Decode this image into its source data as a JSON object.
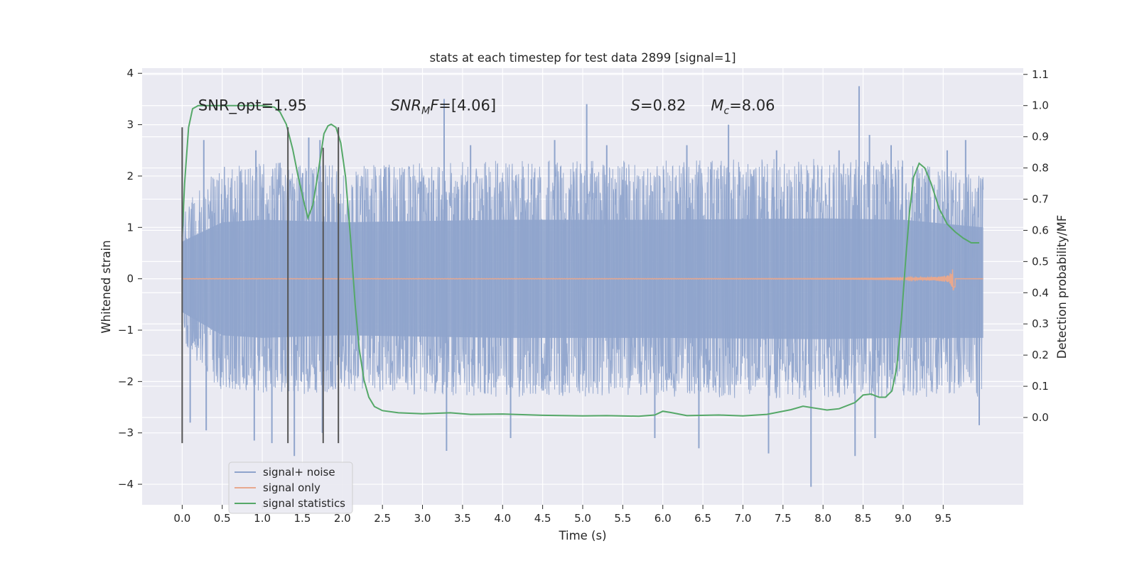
{
  "chart_data": {
    "type": "line",
    "title": "stats at each timestep for test data 2899 [signal=1]",
    "xlabel": "Time (s)",
    "ylabel": "Whitened strain",
    "y2label": "Detection probability/MF",
    "xlim": [
      -0.5,
      10.5
    ],
    "ylim": [
      -4.4,
      4.1
    ],
    "y2lim": [
      -0.28,
      1.12
    ],
    "x_ticks": [
      "0.0",
      "0.5",
      "1.0",
      "1.5",
      "2.0",
      "2.5",
      "3.0",
      "3.5",
      "4.0",
      "4.5",
      "5.0",
      "5.5",
      "6.0",
      "6.5",
      "7.0",
      "7.5",
      "8.0",
      "8.5",
      "9.0",
      "9.5"
    ],
    "y_ticks": [
      "−4",
      "−3",
      "−2",
      "−1",
      "0",
      "1",
      "2",
      "3",
      "4"
    ],
    "y2_ticks": [
      "0.0",
      "0.1",
      "0.2",
      "0.3",
      "0.4",
      "0.5",
      "0.6",
      "0.7",
      "0.8",
      "0.9",
      "1.0",
      "1.1"
    ],
    "grid": true,
    "legend_position": "lower-left",
    "colors": {
      "background": "#eaeaf2",
      "grid": "#ffffff",
      "noise": "#8fa4cc",
      "signal": "#e8a88e",
      "stat": "#55a868",
      "vline": "#555555"
    },
    "annotations": [
      {
        "html": "SNR_opt=1.95",
        "x": 0.2,
        "y": 1.0
      },
      {
        "html": "<tspan font-style='italic'>SNR</tspan><tspan font-style='italic' font-size='14' dy='5'>M</tspan><tspan font-style='italic' dy='-5'>F</tspan>=[4.06]",
        "x": 2.6,
        "y": 1.0
      },
      {
        "html": "<tspan font-style='italic'>S</tspan>=0.82",
        "x": 5.6,
        "y": 1.0
      },
      {
        "html": "<tspan font-style='italic'>M</tspan><tspan font-style='italic' font-size='14' dy='5'>c</tspan><tspan dy='-5'>=8.06</tspan>",
        "x": 6.6,
        "y": 1.0
      }
    ],
    "vertical_lines": [
      {
        "x": 0.0,
        "ymin": -3.2,
        "ymax": 2.95
      },
      {
        "x": 1.32,
        "ymin": -3.2,
        "ymax": 2.95
      },
      {
        "x": 1.76,
        "ymin": -3.2,
        "ymax": 2.55
      },
      {
        "x": 1.95,
        "ymin": -3.2,
        "ymax": 2.95
      }
    ],
    "series": [
      {
        "name": "signal+ noise",
        "kind": "noise",
        "x_range": [
          0.0,
          10.0
        ],
        "envelope_upper": [
          [
            0.0,
            1.45
          ],
          [
            0.5,
            2.2
          ],
          [
            1.0,
            2.3
          ],
          [
            2.0,
            2.2
          ],
          [
            4.0,
            2.3
          ],
          [
            6.0,
            2.3
          ],
          [
            8.0,
            2.35
          ],
          [
            9.0,
            2.3
          ],
          [
            10.0,
            2.0
          ]
        ],
        "envelope_lower": [
          [
            0.0,
            -1.3
          ],
          [
            0.5,
            -2.2
          ],
          [
            1.0,
            -2.3
          ],
          [
            2.0,
            -2.2
          ],
          [
            4.0,
            -2.3
          ],
          [
            6.0,
            -2.3
          ],
          [
            8.0,
            -2.35
          ],
          [
            9.0,
            -2.3
          ],
          [
            10.0,
            -2.3
          ]
        ],
        "peaks": [
          [
            0.27,
            2.7
          ],
          [
            0.92,
            2.5
          ],
          [
            1.58,
            2.75
          ],
          [
            1.72,
            2.7
          ],
          [
            3.27,
            3.5
          ],
          [
            3.6,
            2.6
          ],
          [
            4.65,
            2.7
          ],
          [
            5.05,
            3.4
          ],
          [
            5.3,
            2.6
          ],
          [
            6.3,
            2.6
          ],
          [
            6.82,
            3.0
          ],
          [
            7.42,
            2.5
          ],
          [
            8.2,
            2.5
          ],
          [
            8.45,
            3.75
          ],
          [
            8.58,
            2.8
          ],
          [
            8.85,
            2.6
          ],
          [
            9.55,
            2.5
          ],
          [
            9.78,
            2.7
          ]
        ],
        "troughs": [
          [
            0.1,
            -2.8
          ],
          [
            0.3,
            -2.95
          ],
          [
            0.9,
            -3.15
          ],
          [
            1.12,
            -3.2
          ],
          [
            1.4,
            -3.45
          ],
          [
            1.75,
            -3.0
          ],
          [
            3.3,
            -3.35
          ],
          [
            4.1,
            -3.1
          ],
          [
            5.9,
            -3.1
          ],
          [
            6.45,
            -3.3
          ],
          [
            7.32,
            -3.4
          ],
          [
            7.85,
            -4.05
          ],
          [
            8.4,
            -3.45
          ],
          [
            8.65,
            -3.1
          ],
          [
            9.95,
            -2.85
          ]
        ]
      },
      {
        "name": "signal only",
        "kind": "chirp",
        "x_range": [
          0.0,
          10.0
        ],
        "chirp_end": 9.65,
        "max_amplitude": 0.35
      },
      {
        "name": "signal statistics",
        "kind": "line",
        "axis": "right",
        "points": [
          [
            0.0,
            0.58
          ],
          [
            0.03,
            0.75
          ],
          [
            0.08,
            0.93
          ],
          [
            0.13,
            0.99
          ],
          [
            0.2,
            1.0
          ],
          [
            0.5,
            1.0
          ],
          [
            1.0,
            1.0
          ],
          [
            1.15,
            0.995
          ],
          [
            1.22,
            0.98
          ],
          [
            1.3,
            0.94
          ],
          [
            1.38,
            0.86
          ],
          [
            1.45,
            0.77
          ],
          [
            1.52,
            0.69
          ],
          [
            1.57,
            0.64
          ],
          [
            1.63,
            0.68
          ],
          [
            1.7,
            0.79
          ],
          [
            1.77,
            0.91
          ],
          [
            1.82,
            0.935
          ],
          [
            1.86,
            0.94
          ],
          [
            1.92,
            0.93
          ],
          [
            1.98,
            0.88
          ],
          [
            2.04,
            0.77
          ],
          [
            2.1,
            0.58
          ],
          [
            2.16,
            0.36
          ],
          [
            2.21,
            0.22
          ],
          [
            2.27,
            0.12
          ],
          [
            2.33,
            0.065
          ],
          [
            2.4,
            0.035
          ],
          [
            2.5,
            0.022
          ],
          [
            2.7,
            0.015
          ],
          [
            3.0,
            0.012
          ],
          [
            3.35,
            0.015
          ],
          [
            3.6,
            0.01
          ],
          [
            4.0,
            0.011
          ],
          [
            4.5,
            0.007
          ],
          [
            5.0,
            0.005
          ],
          [
            5.3,
            0.006
          ],
          [
            5.7,
            0.004
          ],
          [
            5.9,
            0.008
          ],
          [
            6.0,
            0.02
          ],
          [
            6.1,
            0.016
          ],
          [
            6.3,
            0.006
          ],
          [
            6.7,
            0.008
          ],
          [
            7.0,
            0.005
          ],
          [
            7.3,
            0.01
          ],
          [
            7.6,
            0.025
          ],
          [
            7.75,
            0.036
          ],
          [
            7.9,
            0.03
          ],
          [
            8.05,
            0.024
          ],
          [
            8.2,
            0.028
          ],
          [
            8.4,
            0.048
          ],
          [
            8.5,
            0.072
          ],
          [
            8.6,
            0.075
          ],
          [
            8.7,
            0.065
          ],
          [
            8.78,
            0.065
          ],
          [
            8.86,
            0.085
          ],
          [
            8.92,
            0.16
          ],
          [
            8.98,
            0.32
          ],
          [
            9.03,
            0.5
          ],
          [
            9.08,
            0.66
          ],
          [
            9.13,
            0.77
          ],
          [
            9.2,
            0.815
          ],
          [
            9.27,
            0.8
          ],
          [
            9.35,
            0.75
          ],
          [
            9.45,
            0.67
          ],
          [
            9.55,
            0.62
          ],
          [
            9.65,
            0.595
          ],
          [
            9.75,
            0.575
          ],
          [
            9.85,
            0.56
          ],
          [
            9.95,
            0.56
          ]
        ]
      }
    ]
  }
}
